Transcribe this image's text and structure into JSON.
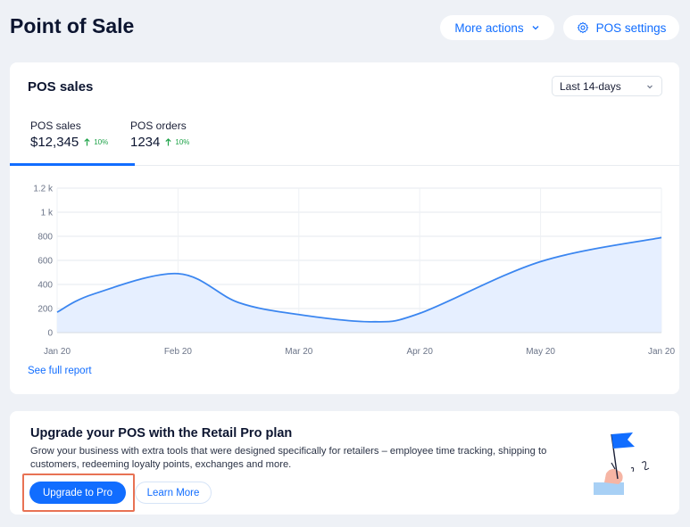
{
  "header": {
    "title": "Point of Sale",
    "more_actions_label": "More actions",
    "pos_settings_label": "POS settings"
  },
  "sales_card": {
    "title": "POS sales",
    "range_select": "Last 14-days",
    "tabs": [
      {
        "label": "POS sales",
        "value": "$12,345",
        "trend": "10%"
      },
      {
        "label": "POS orders",
        "value": "1234",
        "trend": "10%"
      }
    ],
    "see_full_report": "See full report"
  },
  "chart_data": {
    "type": "area",
    "title": "",
    "xlabel": "",
    "ylabel": "",
    "categories": [
      "Jan 20",
      "Feb 20",
      "Mar 20",
      "Apr 20",
      "May 20",
      "Jan 20"
    ],
    "y_ticks": [
      "0",
      "200",
      "400",
      "600",
      "800",
      "1 k",
      "1.2 k"
    ],
    "ylim": [
      0,
      1200
    ],
    "x": [
      0,
      0.3,
      1,
      1.5,
      2,
      2.6,
      3,
      4,
      5
    ],
    "values": [
      170,
      320,
      490,
      250,
      150,
      90,
      160,
      590,
      790
    ],
    "grid": true,
    "series_color": "#3b86f0",
    "fill_color": "#e6efff"
  },
  "upgrade_card": {
    "title": "Upgrade your POS with the Retail Pro plan",
    "description": "Grow your business with extra tools that were designed specifically for retailers – employee time tracking, shipping to customers, redeeming loyalty points, exchanges and more.",
    "primary_label": "Upgrade to Pro",
    "secondary_label": "Learn More"
  }
}
